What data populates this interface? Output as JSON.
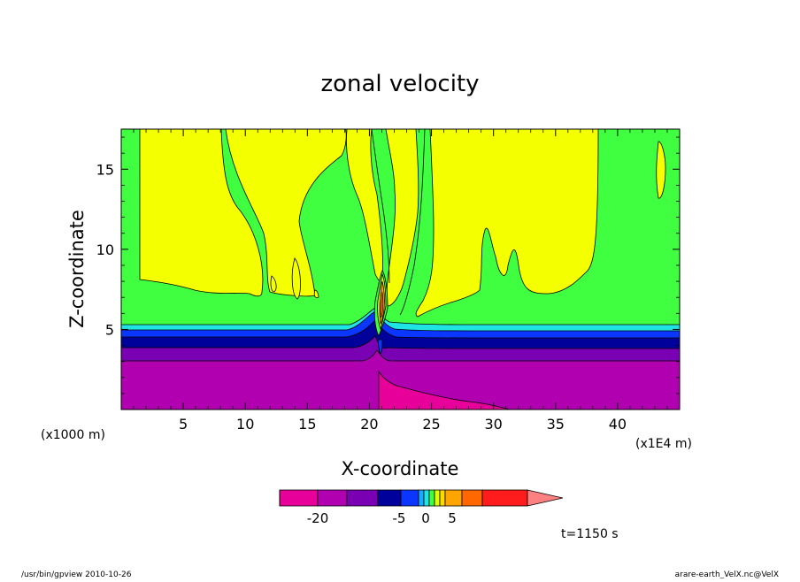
{
  "chart_data": {
    "type": "heatmap",
    "title": "zonal velocity",
    "xlabel": "X-coordinate",
    "ylabel": "Z-coordinate",
    "x_unit_note": "(x1E4 m)",
    "y_unit_note": "(x1000 m)",
    "xlim": [
      0,
      45
    ],
    "ylim": [
      0,
      17.5
    ],
    "x_ticks": [
      5,
      10,
      15,
      20,
      25,
      30,
      35,
      40
    ],
    "y_ticks": [
      5,
      10,
      15
    ],
    "colorbar": {
      "tick_labels": [
        "-20",
        "-5",
        "0",
        "5"
      ],
      "colors": [
        "#e8009a",
        "#b000b0",
        "#7a00b4",
        "#00009a",
        "#0a36ff",
        "#18aaff",
        "#20e4e4",
        "#40ff40",
        "#dcff00",
        "#ffd800",
        "#ffa500",
        "#ff6800",
        "#ff1c1c",
        "#ff8080"
      ]
    },
    "layers": [
      {
        "level": "< -20",
        "color": "#e8009a"
      },
      {
        "level": "-20",
        "color": "#b000b0"
      },
      {
        "level": "-15",
        "color": "#7a00b4"
      },
      {
        "level": "-10",
        "color": "#00009a"
      },
      {
        "level": "-5",
        "color": "#0a36ff"
      },
      {
        "level": "-2",
        "color": "#20e4e4"
      },
      {
        "level": "0",
        "color": "#40ff40"
      },
      {
        "level": "2",
        "color": "#f4ff00"
      }
    ]
  },
  "footer": {
    "left": "/usr/bin/gpview 2010-10-26",
    "right": "arare-earth_VelX.nc@VelX",
    "time_label": "t=1150 s"
  }
}
